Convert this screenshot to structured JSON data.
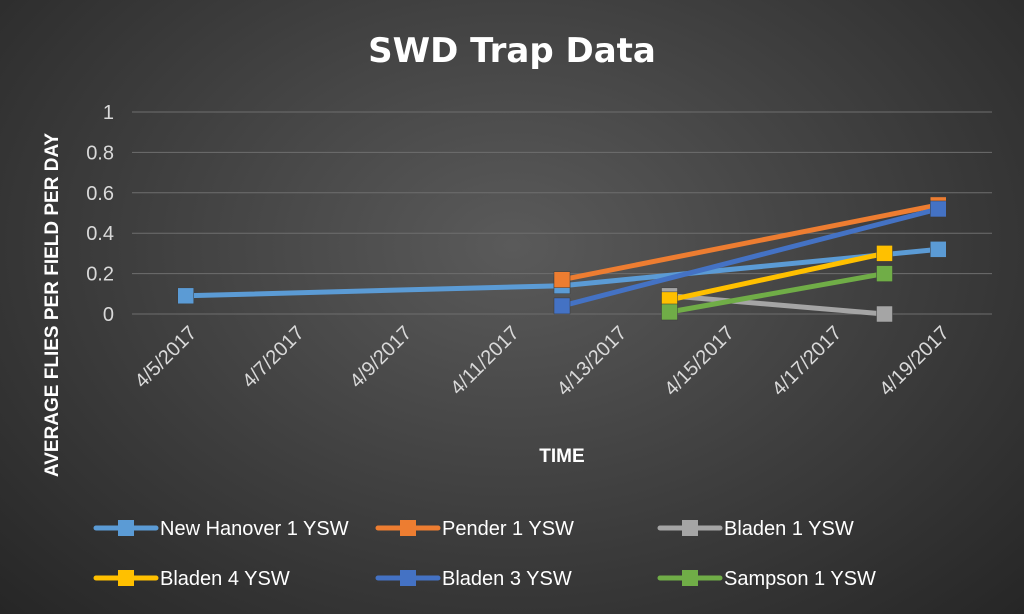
{
  "chart_data": {
    "type": "line",
    "title": "SWD Trap Data",
    "xlabel": "TIME",
    "ylabel": "AVERAGE FLIES PER FIELD PER DAY",
    "x_ticks": [
      "4/5/2017",
      "4/7/2017",
      "4/9/2017",
      "4/11/2017",
      "4/13/2017",
      "4/15/2017",
      "4/17/2017",
      "4/19/2017"
    ],
    "y_ticks": [
      "0",
      "0.2",
      "0.4",
      "0.6",
      "0.8",
      "1"
    ],
    "xlim": [
      "4/4/2017",
      "4/20/2017"
    ],
    "ylim": [
      0,
      1
    ],
    "grid": true,
    "legend": "bottom",
    "series": [
      {
        "name": "New Hanover 1 YSW",
        "color": "#5b9bd5",
        "points": [
          [
            "4/5/2017",
            0.09
          ],
          [
            "4/12/2017",
            0.14
          ],
          [
            "4/19/2017",
            0.32
          ]
        ]
      },
      {
        "name": "Pender 1 YSW",
        "color": "#ed7d31",
        "points": [
          [
            "4/12/2017",
            0.17
          ],
          [
            "4/19/2017",
            0.54
          ]
        ]
      },
      {
        "name": "Bladen 1 YSW",
        "color": "#a5a5a5",
        "points": [
          [
            "4/14/2017",
            0.09
          ],
          [
            "4/18/2017",
            0.0
          ]
        ]
      },
      {
        "name": "Bladen 4 YSW",
        "color": "#ffc000",
        "points": [
          [
            "4/14/2017",
            0.07
          ],
          [
            "4/18/2017",
            0.3
          ]
        ]
      },
      {
        "name": "Bladen 3 YSW",
        "color": "#4472c4",
        "points": [
          [
            "4/12/2017",
            0.04
          ],
          [
            "4/19/2017",
            0.52
          ]
        ]
      },
      {
        "name": "Sampson 1 YSW",
        "color": "#70ad47",
        "points": [
          [
            "4/14/2017",
            0.01
          ],
          [
            "4/18/2017",
            0.2
          ]
        ]
      }
    ]
  }
}
